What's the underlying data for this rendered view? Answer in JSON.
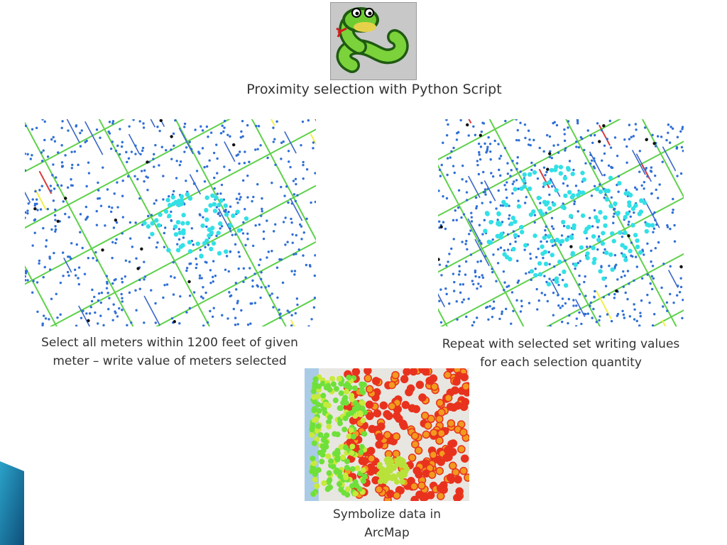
{
  "slide": {
    "title": "Proximity selection with Python Script",
    "icon": "python-snake-icon"
  },
  "panels": [
    {
      "caption_lines": [
        "Select all meters within 1200 feet of given",
        "meter – write value of meters selected"
      ]
    },
    {
      "caption_lines": [
        "Repeat with selected set writing values",
        "for each selection quantity"
      ]
    },
    {
      "caption_lines": [
        "Symbolize data in",
        "ArcMap"
      ]
    }
  ],
  "colors": {
    "accent": "#1a6e9c",
    "meter": "#2f6fd6",
    "selected_meter": "#33e0e6",
    "pipe_green": "#5ed14a",
    "pipe_blue": "#3a66c8",
    "pipe_red": "#d83a3a",
    "pipe_yellow": "#f2ef4a",
    "heat_red": "#e8321e",
    "heat_orange": "#f29a1e",
    "heat_green": "#6fe03a",
    "water": "#a9cbe6"
  }
}
